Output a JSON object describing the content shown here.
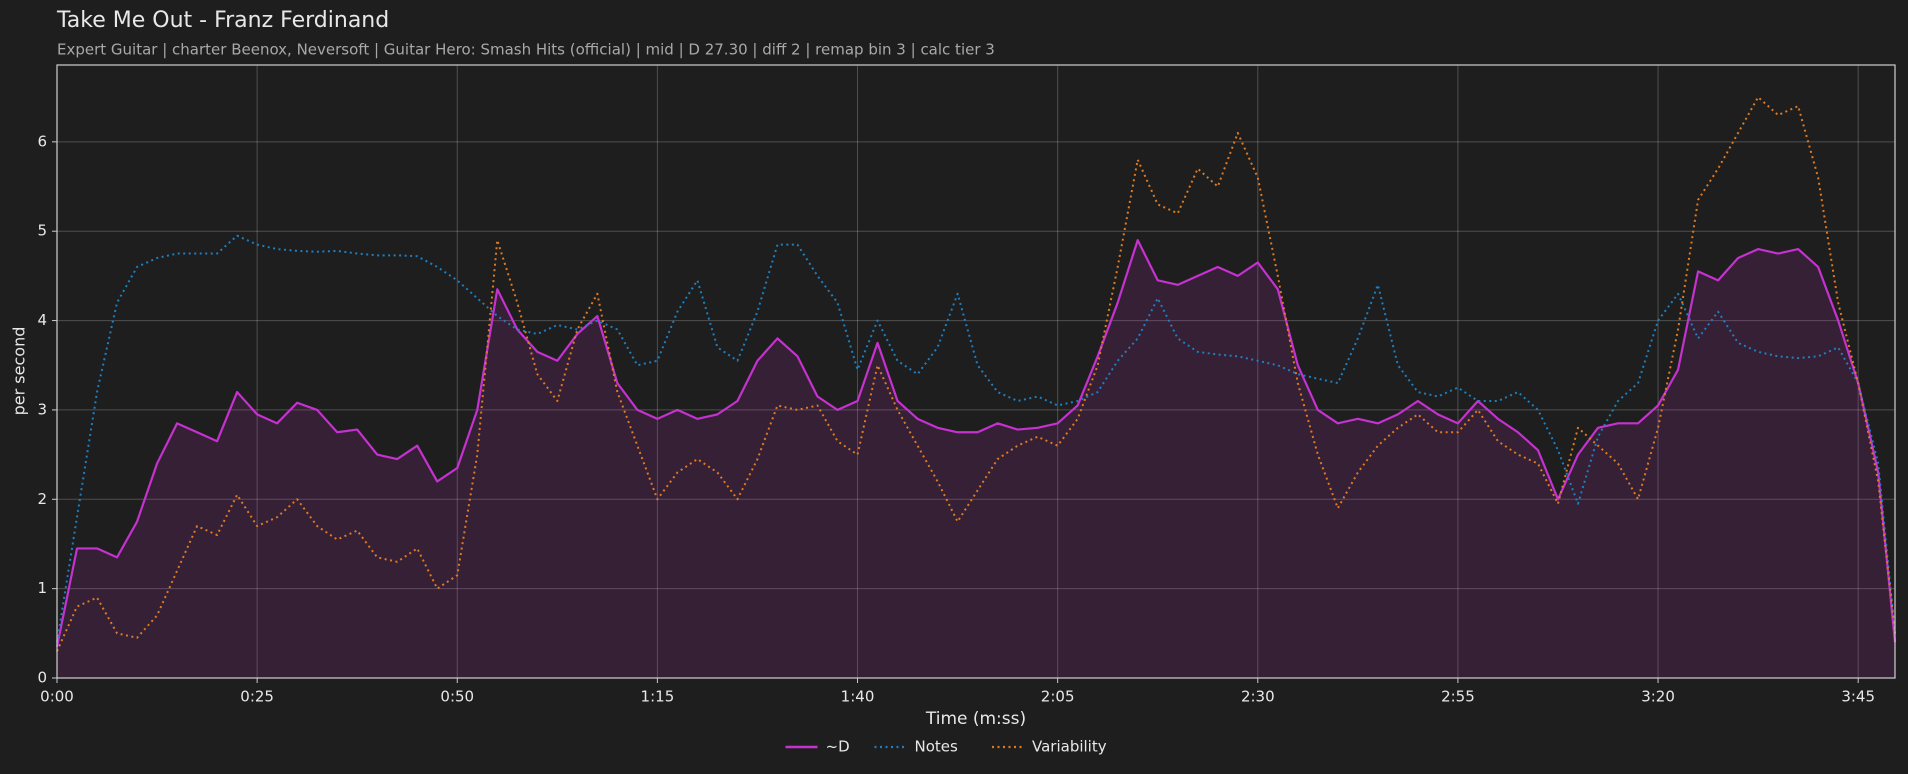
{
  "chart_data": {
    "type": "line",
    "title": "Take Me Out - Franz Ferdinand",
    "subtitle": "Expert Guitar  |  charter Beenox,  Neversoft  |  Guitar Hero: Smash Hits (official)  |  mid  |  D 27.30  |  diff 2  |  remap bin 3  |  calc tier 3",
    "xlabel": "Time (m:ss)",
    "ylabel": "per second",
    "xlim": [
      0,
      229.6
    ],
    "ylim": [
      0,
      6.86
    ],
    "xticks": [
      {
        "value": 0,
        "label": "0:00"
      },
      {
        "value": 25,
        "label": "0:25"
      },
      {
        "value": 50,
        "label": "0:50"
      },
      {
        "value": 75,
        "label": "1:15"
      },
      {
        "value": 100,
        "label": "1:40"
      },
      {
        "value": 125,
        "label": "2:05"
      },
      {
        "value": 150,
        "label": "2:30"
      },
      {
        "value": 175,
        "label": "2:55"
      },
      {
        "value": 200,
        "label": "3:20"
      },
      {
        "value": 225,
        "label": "3:45"
      }
    ],
    "yticks": [
      0,
      1,
      2,
      3,
      4,
      5,
      6
    ],
    "grid": true,
    "legend": "bottom",
    "x": [
      0,
      2.5,
      5,
      7.5,
      10,
      12.5,
      15,
      17.5,
      20,
      22.5,
      25,
      27.5,
      30,
      32.5,
      35,
      37.5,
      40,
      42.5,
      45,
      47.5,
      50,
      52.5,
      55,
      57.5,
      60,
      62.5,
      65,
      67.5,
      70,
      72.5,
      75,
      77.5,
      80,
      82.5,
      85,
      87.5,
      90,
      92.5,
      95,
      97.5,
      100,
      102.5,
      105,
      107.5,
      110,
      112.5,
      115,
      117.5,
      120,
      122.5,
      125,
      127.5,
      130,
      132.5,
      135,
      137.5,
      140,
      142.5,
      145,
      147.5,
      150,
      152.5,
      155,
      157.5,
      160,
      162.5,
      165,
      167.5,
      170,
      172.5,
      175,
      177.5,
      180,
      182.5,
      185,
      187.5,
      190,
      192.5,
      195,
      197.5,
      200,
      202.5,
      205,
      207.5,
      210,
      212.5,
      215,
      217.5,
      220,
      222.5,
      225,
      227.5,
      229.6
    ],
    "series": [
      {
        "name": "~D",
        "color": "#c532cf",
        "style": "solid",
        "fill": true,
        "values": [
          0.35,
          1.45,
          1.45,
          1.35,
          1.75,
          2.4,
          2.85,
          2.75,
          2.65,
          3.2,
          2.95,
          2.85,
          3.08,
          3.0,
          2.75,
          2.78,
          2.5,
          2.45,
          2.6,
          2.2,
          2.35,
          3.0,
          4.35,
          3.9,
          3.65,
          3.55,
          3.85,
          4.05,
          3.3,
          3.0,
          2.9,
          3.0,
          2.9,
          2.95,
          3.1,
          3.55,
          3.8,
          3.6,
          3.15,
          3.0,
          3.1,
          3.75,
          3.1,
          2.9,
          2.8,
          2.75,
          2.75,
          2.85,
          2.78,
          2.8,
          2.85,
          3.05,
          3.6,
          4.2,
          4.9,
          4.45,
          4.4,
          4.5,
          4.6,
          4.5,
          4.65,
          4.35,
          3.5,
          3.0,
          2.85,
          2.9,
          2.85,
          2.95,
          3.1,
          2.95,
          2.85,
          3.1,
          2.9,
          2.75,
          2.55,
          2.0,
          2.5,
          2.8,
          2.85,
          2.85,
          3.05,
          3.45,
          4.55,
          4.45,
          4.7,
          4.8,
          4.75,
          4.8,
          4.6,
          4.0,
          3.3,
          2.3,
          0.4
        ]
      },
      {
        "name": "Notes",
        "color": "#1f7fc0",
        "style": "dotted",
        "fill": false,
        "values": [
          0.4,
          1.8,
          3.2,
          4.2,
          4.6,
          4.7,
          4.75,
          4.75,
          4.75,
          4.95,
          4.85,
          4.8,
          4.78,
          4.77,
          4.78,
          4.75,
          4.73,
          4.73,
          4.72,
          4.6,
          4.45,
          4.25,
          4.05,
          3.9,
          3.85,
          3.95,
          3.9,
          4.0,
          3.9,
          3.5,
          3.55,
          4.1,
          4.45,
          3.7,
          3.55,
          4.1,
          4.85,
          4.85,
          4.5,
          4.2,
          3.45,
          4.0,
          3.55,
          3.4,
          3.7,
          4.3,
          3.5,
          3.2,
          3.1,
          3.15,
          3.05,
          3.1,
          3.2,
          3.55,
          3.8,
          4.25,
          3.8,
          3.65,
          3.62,
          3.6,
          3.55,
          3.5,
          3.4,
          3.35,
          3.3,
          3.8,
          4.4,
          3.5,
          3.2,
          3.15,
          3.25,
          3.1,
          3.1,
          3.2,
          3.0,
          2.55,
          1.95,
          2.7,
          3.1,
          3.3,
          4.0,
          4.3,
          3.8,
          4.1,
          3.75,
          3.65,
          3.6,
          3.58,
          3.6,
          3.7,
          3.3,
          2.4,
          0.5
        ]
      },
      {
        "name": "Variability",
        "color": "#e07a22",
        "style": "dotted",
        "fill": false,
        "values": [
          0.3,
          0.8,
          0.9,
          0.5,
          0.45,
          0.7,
          1.2,
          1.7,
          1.6,
          2.05,
          1.7,
          1.8,
          2.0,
          1.7,
          1.55,
          1.65,
          1.35,
          1.3,
          1.45,
          1.0,
          1.15,
          2.5,
          4.9,
          4.2,
          3.4,
          3.1,
          3.9,
          4.3,
          3.2,
          2.6,
          2.0,
          2.3,
          2.45,
          2.3,
          2.0,
          2.45,
          3.05,
          3.0,
          3.05,
          2.65,
          2.5,
          3.5,
          3.0,
          2.6,
          2.2,
          1.75,
          2.1,
          2.45,
          2.6,
          2.7,
          2.6,
          2.9,
          3.5,
          4.6,
          5.8,
          5.3,
          5.2,
          5.7,
          5.5,
          6.1,
          5.6,
          4.5,
          3.3,
          2.5,
          1.9,
          2.3,
          2.6,
          2.8,
          2.95,
          2.75,
          2.75,
          3.0,
          2.65,
          2.5,
          2.4,
          1.95,
          2.8,
          2.6,
          2.4,
          2.0,
          2.8,
          3.9,
          5.35,
          5.7,
          6.1,
          6.5,
          6.3,
          6.4,
          5.6,
          4.2,
          3.3,
          2.2,
          0.5
        ]
      }
    ]
  }
}
